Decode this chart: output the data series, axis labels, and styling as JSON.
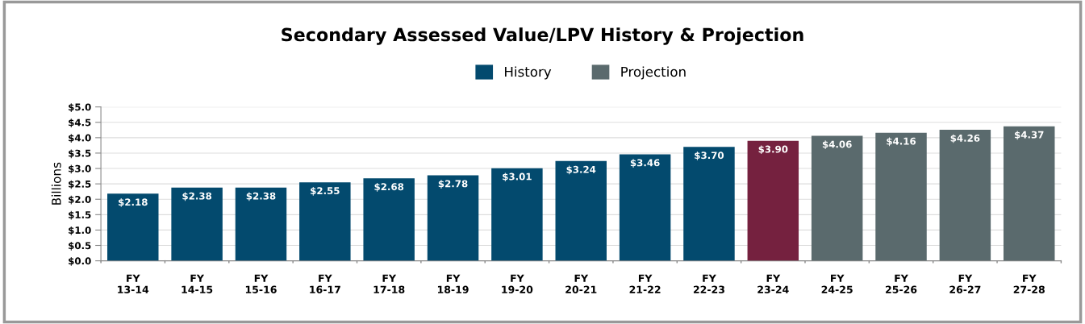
{
  "chart_data": {
    "type": "bar",
    "title": "Secondary Assessed Value/LPV History & Projection",
    "ylabel": "Billions",
    "categories": [
      "FY\n13-14",
      "FY\n14-15",
      "FY\n15-16",
      "FY\n16-17",
      "FY\n17-18",
      "FY\n18-19",
      "FY\n19-20",
      "FY\n20-21",
      "FY\n21-22",
      "FY\n22-23",
      "FY\n23-24",
      "FY\n24-25",
      "FY\n25-26",
      "FY\n26-27",
      "FY\n27-28"
    ],
    "series": [
      {
        "name": "History",
        "color": "#034a6e",
        "colors": [
          "#034a6e",
          "#034a6e",
          "#034a6e",
          "#034a6e",
          "#034a6e",
          "#034a6e",
          "#034a6e",
          "#034a6e",
          "#034a6e",
          "#034a6e",
          "#75213f",
          null,
          null,
          null,
          null
        ],
        "values": [
          2.18,
          2.38,
          2.38,
          2.55,
          2.68,
          2.78,
          3.01,
          3.24,
          3.46,
          3.7,
          3.9,
          null,
          null,
          null,
          null
        ],
        "value_labels": [
          "$2.18",
          "$2.38",
          "$2.38",
          "$2.55",
          "$2.68",
          "$2.78",
          "$3.01",
          "$3.24",
          "$3.46",
          "$3.70",
          "$3.90",
          null,
          null,
          null,
          null
        ]
      },
      {
        "name": "Projection",
        "color": "#5a6a6d",
        "values": [
          null,
          null,
          null,
          null,
          null,
          null,
          null,
          null,
          null,
          null,
          null,
          4.06,
          4.16,
          4.26,
          4.37
        ],
        "value_labels": [
          null,
          null,
          null,
          null,
          null,
          null,
          null,
          null,
          null,
          null,
          null,
          "$4.06",
          "$4.16",
          "$4.26",
          "$4.37"
        ]
      }
    ],
    "ylim": [
      0,
      5
    ],
    "yticks": [
      {
        "value": 0,
        "label": "$0.0"
      },
      {
        "value": 0.5,
        "label": "$0.5"
      },
      {
        "value": 1,
        "label": "$1.0"
      },
      {
        "value": 1.5,
        "label": "$1.5"
      },
      {
        "value": 2,
        "label": "$2.0"
      },
      {
        "value": 2.5,
        "label": "$2.5"
      },
      {
        "value": 3,
        "label": "$3.0"
      },
      {
        "value": 3.5,
        "label": "$3.5"
      },
      {
        "value": 4,
        "label": "$4.0"
      },
      {
        "value": 4.5,
        "label": "$4.5"
      },
      {
        "value": 5,
        "label": "$5.0"
      }
    ],
    "grid": "y",
    "legend": "top"
  }
}
